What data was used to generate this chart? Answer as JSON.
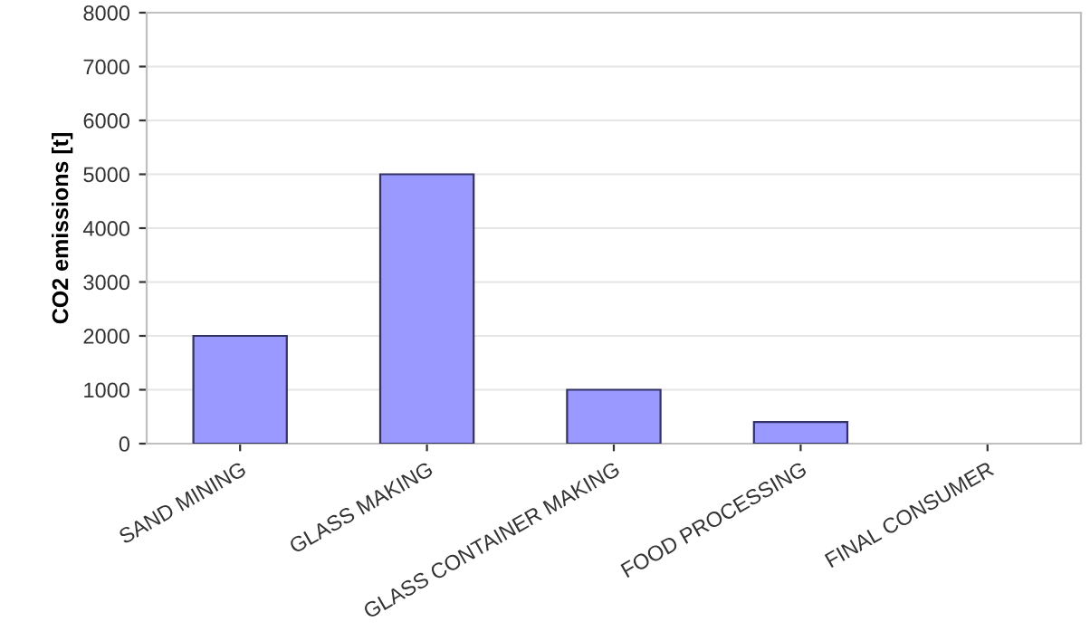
{
  "chart_data": {
    "type": "bar",
    "ylabel": "CO2 emissions [t]",
    "categories": [
      "SAND MINING",
      "GLASS MAKING",
      "GLASS CONTAINER MAKING",
      "FOOD PROCESSING",
      "FINAL CONSUMER"
    ],
    "values": [
      2000,
      5000,
      1000,
      400,
      null
    ],
    "color": "#9999ff",
    "ylim": [
      0,
      8000
    ],
    "yticks": [
      0,
      1000,
      2000,
      3000,
      4000,
      5000,
      6000,
      7000,
      8000
    ],
    "grid": "y"
  }
}
